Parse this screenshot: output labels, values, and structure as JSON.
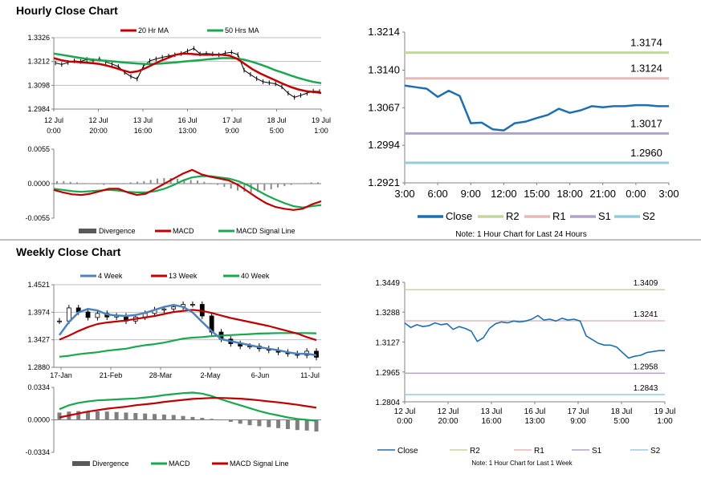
{
  "colors": {
    "ma20": "#c00000",
    "ma50": "#19a74f",
    "divergence": "#595959",
    "macd_line": "#c00000",
    "macd_signal": "#19a74f",
    "close": "#1f6fb0",
    "week4": "#4f81bd",
    "r2": "#c3d69b",
    "r1": "#e6b9b8",
    "s1": "#b3a2c7",
    "s2": "#93cddd",
    "close_line": "#1f6fb0",
    "candle": "#000000"
  },
  "sections": {
    "hourly_title": "Hourly Close Chart",
    "weekly_title": "Weekly Close Chart"
  },
  "chart_data": [
    {
      "id": "hourly_price",
      "type": "line",
      "title": "Hourly Close Chart",
      "legend": [
        "20 Hr MA",
        "50 Hrs MA"
      ],
      "ylim": [
        1.2984,
        1.3326
      ],
      "yticks": [
        "1.3326",
        "1.3212",
        "1.3098",
        "1.2984"
      ],
      "xticks": [
        [
          "12 Jul",
          "0:00"
        ],
        [
          "12 Jul",
          "20:00"
        ],
        [
          "13 Jul",
          "16:00"
        ],
        [
          "16 Jul",
          "13:00"
        ],
        [
          "17 Jul",
          "9:00"
        ],
        [
          "18 Jul",
          "5:00"
        ],
        [
          "19 Jul",
          "1:00"
        ]
      ],
      "series": [
        {
          "name": "Close",
          "values": [
            1.3205,
            1.3198,
            1.3207,
            1.3215,
            1.3212,
            1.3222,
            1.3216,
            1.3224,
            1.321,
            1.32,
            1.3188,
            1.316,
            1.314,
            1.3128,
            1.319,
            1.3215,
            1.3224,
            1.3232,
            1.3238,
            1.3244,
            1.325,
            1.3262,
            1.3275,
            1.3248,
            1.325,
            1.3248,
            1.3244,
            1.3252,
            1.3256,
            1.3245,
            1.317,
            1.315,
            1.313,
            1.3115,
            1.311,
            1.3105,
            1.309,
            1.306,
            1.304,
            1.305,
            1.306,
            1.307,
            1.3068
          ]
        },
        {
          "name": "20 Hr MA",
          "values": [
            1.3228,
            1.3218,
            1.3212,
            1.321,
            1.3207,
            1.3204,
            1.32,
            1.3192,
            1.3182,
            1.317,
            1.316,
            1.3165,
            1.318,
            1.3198,
            1.3215,
            1.323,
            1.3245,
            1.325,
            1.3248,
            1.3245,
            1.3244,
            1.3244,
            1.3244,
            1.324,
            1.3225,
            1.32,
            1.3175,
            1.3155,
            1.3138,
            1.3122,
            1.3105,
            1.309,
            1.3078,
            1.307,
            1.3066,
            1.3062
          ]
        },
        {
          "name": "50 Hrs MA",
          "values": [
            1.325,
            1.3244,
            1.3238,
            1.3232,
            1.3226,
            1.3222,
            1.3218,
            1.3215,
            1.3212,
            1.3208,
            1.3205,
            1.3202,
            1.32,
            1.32,
            1.3202,
            1.3205,
            1.3208,
            1.3212,
            1.3215,
            1.3218,
            1.3222,
            1.3225,
            1.3228,
            1.3228,
            1.3226,
            1.322,
            1.321,
            1.3198,
            1.3185,
            1.317,
            1.3158,
            1.3145,
            1.3133,
            1.3123,
            1.3114,
            1.3108
          ]
        }
      ]
    },
    {
      "id": "hourly_macd",
      "type": "bar",
      "ylim": [
        -0.0055,
        0.0055
      ],
      "yticks": [
        "0.0055",
        "0.0000",
        "-0.0055"
      ],
      "legend": [
        "Divergence",
        "MACD",
        "MACD Signal Line"
      ],
      "series": [
        {
          "name": "Divergence",
          "values": [
            0.0004,
            0.0004,
            0.0003,
            0.0002,
            0.0001,
            0.0,
            -0.0001,
            -0.0002,
            -0.0001,
            0.0,
            0.0001,
            0.0002,
            0.0003,
            0.0004,
            0.0006,
            0.0008,
            0.0009,
            0.0009,
            0.0008,
            0.0007,
            0.0006,
            0.0005,
            0.0003,
            0.0001,
            -0.0002,
            -0.0005,
            -0.0008,
            -0.0011,
            -0.0013,
            -0.0014,
            -0.0013,
            -0.0011,
            -0.0009,
            -0.0006,
            -0.0004,
            -0.0002,
            0.0,
            0.0001,
            0.0002,
            0.0002
          ]
        },
        {
          "name": "MACD",
          "values": [
            -0.001,
            -0.0014,
            -0.0017,
            -0.0018,
            -0.0016,
            -0.0012,
            -0.0008,
            -0.0008,
            -0.0014,
            -0.0018,
            -0.0016,
            -0.0008,
            0.0,
            0.0008,
            0.0016,
            0.0022,
            0.0015,
            0.0011,
            0.0008,
            0.0005,
            -0.0002,
            -0.0012,
            -0.0022,
            -0.0031,
            -0.0037,
            -0.004,
            -0.0042,
            -0.004,
            -0.0033,
            -0.0028
          ]
        },
        {
          "name": "MACD Signal Line",
          "values": [
            -0.0008,
            -0.001,
            -0.0012,
            -0.0013,
            -0.0012,
            -0.0011,
            -0.001,
            -0.0011,
            -0.0013,
            -0.0014,
            -0.0014,
            -0.0012,
            -0.0008,
            -0.0002,
            0.0005,
            0.001,
            0.0012,
            0.0012,
            0.001,
            0.0008,
            0.0004,
            -0.0002,
            -0.001,
            -0.0018,
            -0.0025,
            -0.0031,
            -0.0036,
            -0.0038,
            -0.0036,
            -0.0034
          ]
        }
      ]
    },
    {
      "id": "daily_24h",
      "type": "line",
      "note": "Note: 1 Hour Chart for Last 24 Hours",
      "ylim": [
        1.2921,
        1.3214
      ],
      "yticks": [
        "1.3214",
        "1.3140",
        "1.3067",
        "1.2994",
        "1.2921"
      ],
      "xticks": [
        "3:00",
        "6:00",
        "9:00",
        "12:00",
        "15:00",
        "18:00",
        "21:00",
        "0:00",
        "3:00"
      ],
      "legend": [
        "Close",
        "R2",
        "R1",
        "S1",
        "S2"
      ],
      "levels": {
        "R2": 1.3174,
        "R1": 1.3124,
        "S1": 1.3017,
        "S2": 1.296
      },
      "level_labels": {
        "R2": "1.3174",
        "R1": "1.3124",
        "S1": "1.3017",
        "S2": "1.2960"
      },
      "series": [
        {
          "name": "Close",
          "values": [
            1.311,
            1.3107,
            1.3104,
            1.3088,
            1.31,
            1.309,
            1.3037,
            1.3038,
            1.3025,
            1.3023,
            1.3037,
            1.304,
            1.3047,
            1.3053,
            1.3065,
            1.3057,
            1.3062,
            1.307,
            1.3068,
            1.307,
            1.307,
            1.3072,
            1.3072,
            1.307,
            1.307
          ]
        }
      ]
    },
    {
      "id": "weekly_price",
      "type": "line",
      "title": "Weekly Close Chart",
      "legend": [
        "4 Week",
        "13 Week",
        "40 Week"
      ],
      "ylim": [
        1.288,
        1.4521
      ],
      "yticks": [
        "1.4521",
        "1.3974",
        "1.3427",
        "1.2880"
      ],
      "xticks": [
        "17-Jan",
        "21-Feb",
        "28-Mar",
        "2-May",
        "6-Jun",
        "11-Jul"
      ],
      "series": [
        {
          "name": "Close",
          "values": [
            1.38,
            1.406,
            1.398,
            1.387,
            1.395,
            1.388,
            1.39,
            1.38,
            1.388,
            1.395,
            1.402,
            1.404,
            1.408,
            1.413,
            1.413,
            1.39,
            1.358,
            1.344,
            1.335,
            1.33,
            1.33,
            1.325,
            1.322,
            1.318,
            1.315,
            1.312,
            1.32,
            1.308
          ]
        },
        {
          "name": "4 Week",
          "values": [
            1.352,
            1.378,
            1.397,
            1.404,
            1.401,
            1.393,
            1.391,
            1.39,
            1.392,
            1.396,
            1.402,
            1.408,
            1.412,
            1.408,
            1.397,
            1.378,
            1.36,
            1.344,
            1.34,
            1.336,
            1.332,
            1.328,
            1.325,
            1.322,
            1.318,
            1.315,
            1.315,
            1.312
          ]
        },
        {
          "name": "13 Week",
          "values": [
            1.343,
            1.351,
            1.36,
            1.368,
            1.374,
            1.377,
            1.379,
            1.381,
            1.384,
            1.387,
            1.39,
            1.394,
            1.398,
            1.4,
            1.402,
            1.4,
            1.396,
            1.391,
            1.386,
            1.382,
            1.378,
            1.374,
            1.37,
            1.365,
            1.36,
            1.355,
            1.348,
            1.342
          ]
        },
        {
          "name": "40 Week",
          "values": [
            1.309,
            1.311,
            1.314,
            1.316,
            1.318,
            1.321,
            1.323,
            1.325,
            1.329,
            1.332,
            1.334,
            1.337,
            1.341,
            1.345,
            1.347,
            1.348,
            1.35,
            1.351,
            1.352,
            1.353,
            1.354,
            1.355,
            1.3555,
            1.356,
            1.356,
            1.356,
            1.356,
            1.3555
          ]
        }
      ]
    },
    {
      "id": "weekly_macd",
      "type": "bar",
      "ylim": [
        -0.0334,
        0.0334
      ],
      "yticks": [
        "0.0334",
        "0.0000",
        "-0.0334"
      ],
      "legend": [
        "Divergence",
        "MACD",
        "MACD Signal Line"
      ],
      "series": [
        {
          "name": "Divergence",
          "values": [
            0.0075,
            0.0085,
            0.009,
            0.009,
            0.0088,
            0.0085,
            0.008,
            0.0075,
            0.007,
            0.0065,
            0.006,
            0.0055,
            0.005,
            0.004,
            0.003,
            0.002,
            0.001,
            0.0,
            -0.002,
            -0.004,
            -0.0055,
            -0.0065,
            -0.0075,
            -0.0085,
            -0.0095,
            -0.0105,
            -0.011,
            -0.012
          ]
        },
        {
          "name": "MACD",
          "values": [
            0.011,
            0.015,
            0.0175,
            0.019,
            0.02,
            0.0205,
            0.021,
            0.0215,
            0.022,
            0.023,
            0.024,
            0.0255,
            0.0265,
            0.0275,
            0.028,
            0.027,
            0.0245,
            0.021,
            0.018,
            0.015,
            0.012,
            0.009,
            0.0065,
            0.0045,
            0.0025,
            0.001,
            0.0,
            -0.001
          ]
        },
        {
          "name": "MACD Signal Line",
          "values": [
            0.0025,
            0.0045,
            0.0065,
            0.0085,
            0.01,
            0.0115,
            0.0125,
            0.0135,
            0.015,
            0.016,
            0.017,
            0.0185,
            0.0195,
            0.0205,
            0.0215,
            0.022,
            0.0225,
            0.0225,
            0.0222,
            0.0218,
            0.021,
            0.02,
            0.019,
            0.018,
            0.0168,
            0.0155,
            0.014,
            0.0125
          ]
        }
      ]
    },
    {
      "id": "weekly_1w",
      "type": "line",
      "note": "Note: 1 Hour Chart for Last 1 Week",
      "ylim": [
        1.2804,
        1.3449
      ],
      "yticks": [
        "1.3449",
        "1.3288",
        "1.3127",
        "1.2965",
        "1.2804"
      ],
      "xticks": [
        [
          "12 Jul",
          "0:00"
        ],
        [
          "12 Jul",
          "20:00"
        ],
        [
          "13 Jul",
          "16:00"
        ],
        [
          "16 Jul",
          "13:00"
        ],
        [
          "17 Jul",
          "9:00"
        ],
        [
          "18 Jul",
          "5:00"
        ],
        [
          "19 Jul",
          "1:00"
        ]
      ],
      "legend": [
        "Close",
        "R2",
        "R1",
        "S1",
        "S2"
      ],
      "levels": {
        "R2": 1.3409,
        "R1": 1.3241,
        "S1": 1.2958,
        "S2": 1.2843
      },
      "level_labels": {
        "R2": "1.3409",
        "R1": "1.3241",
        "S1": "1.2958",
        "S2": "1.2843"
      },
      "series": [
        {
          "name": "Close",
          "values": [
            1.323,
            1.3205,
            1.322,
            1.321,
            1.3215,
            1.323,
            1.322,
            1.3225,
            1.3195,
            1.321,
            1.32,
            1.3185,
            1.313,
            1.315,
            1.32,
            1.3225,
            1.3235,
            1.323,
            1.324,
            1.3235,
            1.324,
            1.325,
            1.327,
            1.3245,
            1.325,
            1.324,
            1.3255,
            1.3245,
            1.325,
            1.324,
            1.316,
            1.314,
            1.312,
            1.311,
            1.311,
            1.31,
            1.307,
            1.304,
            1.305,
            1.3055,
            1.307,
            1.3075,
            1.308,
            1.308
          ]
        }
      ]
    }
  ]
}
